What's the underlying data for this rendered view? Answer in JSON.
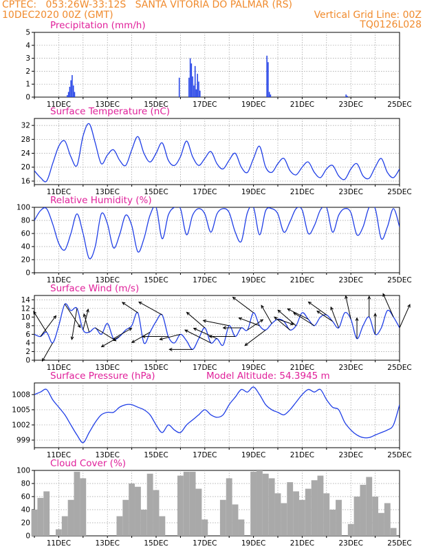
{
  "header": {
    "line1_left": "CPTEC:   053:26W-33:12S   SANTA VITORIA DO PALMAR (RS)",
    "line2_left": "10DEC2020 00Z (GMT)",
    "line2_right": "Vertical Grid Line: 00Z",
    "line3_right": "TQ0126L028"
  },
  "colors": {
    "header_text": "#f08a2c",
    "panel_title": "#e0209a",
    "line": "#1f3ee6",
    "cloud_bar": "#a9a9a9",
    "grid": "#9a9a9a"
  },
  "x_axis": {
    "tick_labels": [
      "11DEC",
      "13DEC",
      "15DEC",
      "17DEC",
      "19DEC",
      "21DEC",
      "23DEC",
      "25DEC"
    ],
    "start_day": 10,
    "end_day": 25
  },
  "chart_data": [
    {
      "type": "bar",
      "title": "Precipitation (mm/h)",
      "ylim": [
        0,
        5
      ],
      "yticks": [
        0,
        1,
        2,
        3,
        4,
        5
      ],
      "unit": "mm/h",
      "events": [
        {
          "day": 11.35,
          "value": 0.15
        },
        {
          "day": 11.4,
          "value": 0.4
        },
        {
          "day": 11.45,
          "value": 0.8
        },
        {
          "day": 11.5,
          "value": 1.3
        },
        {
          "day": 11.55,
          "value": 1.7
        },
        {
          "day": 11.6,
          "value": 0.9
        },
        {
          "day": 11.65,
          "value": 0.4
        },
        {
          "day": 15.95,
          "value": 1.5
        },
        {
          "day": 16.35,
          "value": 1.5
        },
        {
          "day": 16.4,
          "value": 3.0
        },
        {
          "day": 16.45,
          "value": 2.6
        },
        {
          "day": 16.5,
          "value": 1.6
        },
        {
          "day": 16.55,
          "value": 0.9
        },
        {
          "day": 16.6,
          "value": 2.4
        },
        {
          "day": 16.65,
          "value": 0.6
        },
        {
          "day": 16.7,
          "value": 1.8
        },
        {
          "day": 16.75,
          "value": 1.2
        },
        {
          "day": 16.8,
          "value": 0.5
        },
        {
          "day": 19.55,
          "value": 3.2
        },
        {
          "day": 19.6,
          "value": 2.7
        },
        {
          "day": 19.65,
          "value": 0.4
        },
        {
          "day": 19.7,
          "value": 0.2
        },
        {
          "day": 22.8,
          "value": 0.2
        },
        {
          "day": 22.85,
          "value": 0.1
        }
      ]
    },
    {
      "type": "line",
      "title": "Surface Temperature (nC)",
      "ylim": [
        15,
        34
      ],
      "yticks": [
        16,
        20,
        24,
        28,
        32
      ],
      "x": [
        10.0,
        10.25,
        10.5,
        10.75,
        11.0,
        11.25,
        11.5,
        11.75,
        12.0,
        12.25,
        12.5,
        12.75,
        13.0,
        13.25,
        13.5,
        13.75,
        14.0,
        14.25,
        14.5,
        14.75,
        15.0,
        15.25,
        15.5,
        15.75,
        16.0,
        16.25,
        16.5,
        16.75,
        17.0,
        17.25,
        17.5,
        17.75,
        18.0,
        18.25,
        18.5,
        18.75,
        19.0,
        19.25,
        19.5,
        19.75,
        20.0,
        20.25,
        20.5,
        20.75,
        21.0,
        21.25,
        21.5,
        21.75,
        22.0,
        22.25,
        22.5,
        22.75,
        23.0,
        23.25,
        23.5,
        23.75,
        24.0,
        24.25,
        24.5,
        24.75,
        25.0
      ],
      "values": [
        19,
        17,
        16,
        21,
        26,
        27.5,
        23,
        20.5,
        29,
        32.5,
        27,
        21,
        23.5,
        25,
        22,
        20.5,
        25,
        28.8,
        24,
        21.5,
        24,
        27,
        22,
        20.5,
        23,
        27.5,
        23,
        20.5,
        22.5,
        24.5,
        21,
        19.5,
        22,
        24,
        20,
        18.5,
        22.5,
        26,
        20,
        18.5,
        21,
        22.5,
        19,
        17.8,
        20,
        21.5,
        18.5,
        17,
        19.5,
        20.5,
        17.5,
        16.5,
        19.5,
        21,
        17.5,
        16.8,
        20,
        22.5,
        18.5,
        17,
        19.5
      ]
    },
    {
      "type": "line",
      "title": "Relative Humidity (%)",
      "ylim": [
        0,
        100
      ],
      "yticks": [
        0,
        20,
        40,
        60,
        80,
        100
      ],
      "x": [
        10.0,
        10.25,
        10.5,
        10.75,
        11.0,
        11.25,
        11.5,
        11.75,
        12.0,
        12.25,
        12.5,
        12.75,
        13.0,
        13.25,
        13.5,
        13.75,
        14.0,
        14.25,
        14.5,
        14.75,
        15.0,
        15.25,
        15.5,
        15.75,
        16.0,
        16.25,
        16.5,
        16.75,
        17.0,
        17.25,
        17.5,
        17.75,
        18.0,
        18.25,
        18.5,
        18.75,
        19.0,
        19.25,
        19.5,
        19.75,
        20.0,
        20.25,
        20.5,
        20.75,
        21.0,
        21.25,
        21.5,
        21.75,
        22.0,
        22.25,
        22.5,
        22.75,
        23.0,
        23.25,
        23.5,
        23.75,
        24.0,
        24.25,
        24.5,
        24.75,
        25.0
      ],
      "values": [
        80,
        95,
        98,
        75,
        45,
        35,
        60,
        90,
        60,
        22,
        40,
        90,
        75,
        38,
        58,
        88,
        72,
        32,
        52,
        88,
        100,
        52,
        88,
        100,
        98,
        58,
        88,
        98,
        90,
        62,
        90,
        98,
        92,
        62,
        48,
        92,
        100,
        58,
        95,
        98,
        90,
        62,
        78,
        98,
        96,
        60,
        72,
        96,
        100,
        62,
        88,
        98,
        92,
        58,
        70,
        100,
        98,
        52,
        70,
        98,
        70
      ]
    },
    {
      "type": "line",
      "title": "Surface Wind (m/s)",
      "ylim": [
        0,
        15
      ],
      "yticks": [
        0,
        2,
        4,
        6,
        8,
        10,
        12,
        14
      ],
      "x": [
        10.0,
        10.25,
        10.5,
        10.75,
        11.0,
        11.25,
        11.5,
        11.75,
        12.0,
        12.25,
        12.5,
        12.75,
        13.0,
        13.25,
        13.5,
        13.75,
        14.0,
        14.25,
        14.5,
        14.75,
        15.0,
        15.25,
        15.5,
        15.75,
        16.0,
        16.25,
        16.5,
        16.75,
        17.0,
        17.25,
        17.5,
        17.75,
        18.0,
        18.25,
        18.5,
        18.75,
        19.0,
        19.25,
        19.5,
        19.75,
        20.0,
        20.25,
        20.5,
        20.75,
        21.0,
        21.25,
        21.5,
        21.75,
        22.0,
        22.25,
        22.5,
        22.75,
        23.0,
        23.25,
        23.5,
        23.75,
        24.0,
        24.25,
        24.5,
        24.75,
        25.0
      ],
      "values": [
        6,
        5.5,
        6.5,
        4,
        8,
        13,
        11.5,
        12,
        7,
        6.5,
        7.5,
        6,
        8.5,
        5,
        5.5,
        7,
        8,
        11,
        4,
        6.5,
        9,
        10.5,
        5.5,
        4,
        6,
        4.5,
        2.5,
        5,
        7.5,
        4,
        5,
        3.5,
        8,
        5.5,
        7.5,
        7,
        11,
        8,
        7,
        8.5,
        9.5,
        9,
        7,
        8,
        11,
        9.5,
        8,
        10,
        10.5,
        9,
        7.5,
        11,
        9.5,
        5,
        8,
        10,
        6,
        7.5,
        11.5,
        10,
        7.5
      ],
      "vectors": [
        {
          "day": 10.25,
          "u": 3,
          "v": 4
        },
        {
          "day": 10.5,
          "u": -2.5,
          "v": 4
        },
        {
          "day": 10.75,
          "u": -2,
          "v": -3.5
        },
        {
          "day": 11.25,
          "u": 3,
          "v": -4.5
        },
        {
          "day": 11.75,
          "u": -1,
          "v": -6
        },
        {
          "day": 12.0,
          "u": 1,
          "v": 4
        },
        {
          "day": 12.25,
          "u": -1,
          "v": 3.5
        },
        {
          "day": 12.5,
          "u": 4,
          "v": -2.5
        },
        {
          "day": 13.25,
          "u": 3.5,
          "v": 2
        },
        {
          "day": 13.5,
          "u": -3.5,
          "v": -2
        },
        {
          "day": 14.25,
          "u": -3,
          "v": 2
        },
        {
          "day": 14.75,
          "u": -3.5,
          "v": -2
        },
        {
          "day": 15.25,
          "u": -4.5,
          "v": 2.5
        },
        {
          "day": 15.5,
          "u": -5,
          "v": 0
        },
        {
          "day": 16.0,
          "u": -4,
          "v": -1
        },
        {
          "day": 16.5,
          "u": -4.5,
          "v": 0
        },
        {
          "day": 17.0,
          "u": -3.5,
          "v": 3
        },
        {
          "day": 17.25,
          "u": -5,
          "v": 2.5
        },
        {
          "day": 17.5,
          "u": -4.5,
          "v": 2
        },
        {
          "day": 18.0,
          "u": -5,
          "v": 1
        },
        {
          "day": 18.25,
          "u": -5,
          "v": 0
        },
        {
          "day": 18.5,
          "u": -3.5,
          "v": 0
        },
        {
          "day": 18.75,
          "u": 3,
          "v": 2
        },
        {
          "day": 19.0,
          "u": -4,
          "v": 3
        },
        {
          "day": 19.25,
          "u": -4,
          "v": 1.5
        },
        {
          "day": 19.5,
          "u": -4,
          "v": -3
        },
        {
          "day": 19.75,
          "u": -2,
          "v": 3.5
        },
        {
          "day": 20.0,
          "u": 3,
          "v": -1
        },
        {
          "day": 20.5,
          "u": -3,
          "v": 2.5
        },
        {
          "day": 20.75,
          "u": -3.5,
          "v": 3
        },
        {
          "day": 21.25,
          "u": -4,
          "v": 2
        },
        {
          "day": 21.5,
          "u": -4,
          "v": 2.5
        },
        {
          "day": 22.0,
          "u": -3.5,
          "v": 2.5
        },
        {
          "day": 22.25,
          "u": -3,
          "v": 2
        },
        {
          "day": 22.5,
          "u": -1.5,
          "v": 4
        },
        {
          "day": 23.0,
          "u": -1,
          "v": 4.5
        },
        {
          "day": 23.25,
          "u": 0,
          "v": 4
        },
        {
          "day": 23.75,
          "u": 0,
          "v": 4
        },
        {
          "day": 24.0,
          "u": 0,
          "v": 4
        },
        {
          "day": 24.75,
          "u": -2,
          "v": 4.5
        },
        {
          "day": 25.0,
          "u": 2,
          "v": 4.5
        }
      ]
    },
    {
      "type": "line",
      "title": "Surface Pressure (hPa)",
      "subtitle": "Model Altitude: 54.3945 m",
      "ylim": [
        997.5,
        1010.3
      ],
      "yticks": [
        999,
        1002,
        1005,
        1008
      ],
      "x": [
        10.0,
        10.25,
        10.5,
        10.75,
        11.0,
        11.25,
        11.5,
        11.75,
        12.0,
        12.25,
        12.5,
        12.75,
        13.0,
        13.25,
        13.5,
        13.75,
        14.0,
        14.25,
        14.5,
        14.75,
        15.0,
        15.25,
        15.5,
        15.75,
        16.0,
        16.25,
        16.5,
        16.75,
        17.0,
        17.25,
        17.5,
        17.75,
        18.0,
        18.25,
        18.5,
        18.75,
        19.0,
        19.25,
        19.5,
        19.75,
        20.0,
        20.25,
        20.5,
        20.75,
        21.0,
        21.25,
        21.5,
        21.75,
        22.0,
        22.25,
        22.5,
        22.75,
        23.0,
        23.25,
        23.5,
        23.75,
        24.0,
        24.25,
        24.5,
        24.75,
        25.0
      ],
      "values": [
        1008,
        1008.5,
        1009,
        1007,
        1005.5,
        1004,
        1002,
        1000,
        998.5,
        1000.5,
        1002.5,
        1004,
        1004.5,
        1004.5,
        1005.5,
        1006,
        1006,
        1005.5,
        1005,
        1004,
        1002,
        1000.5,
        1002,
        1001,
        1000.5,
        1002,
        1003,
        1004,
        1005,
        1004,
        1003.5,
        1004,
        1006,
        1007.5,
        1009,
        1008.5,
        1009.5,
        1008,
        1006,
        1005,
        1004.5,
        1004,
        1005,
        1006.5,
        1008,
        1009,
        1008.5,
        1009,
        1007,
        1005.5,
        1005,
        1002.5,
        1001,
        1000,
        999.5,
        999.5,
        1000,
        1000.5,
        1001,
        1002,
        1006
      ]
    },
    {
      "type": "bar",
      "title": "Cloud Cover (%)",
      "ylim": [
        0,
        100
      ],
      "yticks": [
        0,
        20,
        40,
        60,
        80,
        100
      ],
      "x": [
        10.0,
        10.25,
        10.5,
        10.75,
        11.0,
        11.25,
        11.5,
        11.75,
        12.0,
        12.25,
        12.5,
        12.75,
        13.0,
        13.25,
        13.5,
        13.75,
        14.0,
        14.25,
        14.5,
        14.75,
        15.0,
        15.25,
        15.5,
        15.75,
        16.0,
        16.25,
        16.5,
        16.75,
        17.0,
        17.25,
        17.5,
        17.75,
        18.0,
        18.25,
        18.5,
        18.75,
        19.0,
        19.25,
        19.5,
        19.75,
        20.0,
        20.25,
        20.5,
        20.75,
        21.0,
        21.25,
        21.5,
        21.75,
        22.0,
        22.25,
        22.5,
        22.75,
        23.0,
        23.25,
        23.5,
        23.75,
        24.0,
        24.25,
        24.5,
        24.75,
        25.0
      ],
      "values": [
        40,
        58,
        68,
        0,
        10,
        30,
        55,
        98,
        88,
        0,
        0,
        0,
        0,
        0,
        30,
        55,
        80,
        75,
        40,
        95,
        70,
        30,
        0,
        0,
        92,
        98,
        98,
        72,
        25,
        0,
        0,
        55,
        88,
        48,
        25,
        0,
        98,
        100,
        95,
        88,
        65,
        50,
        82,
        68,
        55,
        72,
        85,
        92,
        65,
        40,
        55,
        0,
        18,
        60,
        78,
        90,
        60,
        35,
        50,
        12,
        0
      ]
    }
  ]
}
